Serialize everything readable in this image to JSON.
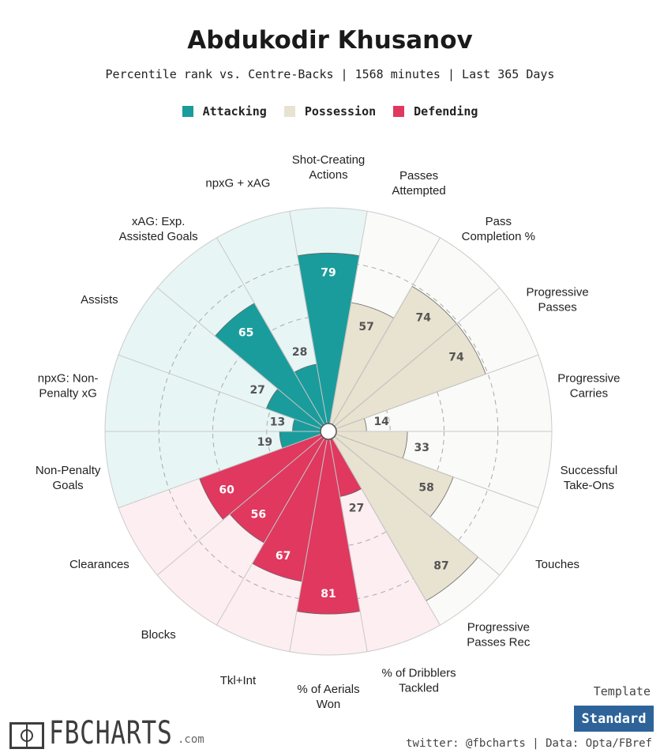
{
  "title": "Abdukodir Khusanov",
  "subtitle": "Percentile rank vs. Centre-Backs | 1568 minutes | Last 365 Days",
  "legend": [
    {
      "label": "Attacking",
      "color": "#1a9c9c"
    },
    {
      "label": "Possession",
      "color": "#e8e2d0"
    },
    {
      "label": "Defending",
      "color": "#e0385f"
    }
  ],
  "chart_data": {
    "type": "polar-bar",
    "title": "Abdukodir Khusanov",
    "rlim": [
      0,
      100
    ],
    "grid_rings": [
      25,
      50,
      75
    ],
    "categories": [
      {
        "label": "Shot-Creating Actions",
        "value": 79,
        "group": "Attacking"
      },
      {
        "label": "Passes Attempted",
        "value": 57,
        "group": "Possession"
      },
      {
        "label": "Pass Completion %",
        "value": 74,
        "group": "Possession"
      },
      {
        "label": "Progressive Passes",
        "value": 74,
        "group": "Possession"
      },
      {
        "label": "Progressive Carries",
        "value": 14,
        "group": "Possession"
      },
      {
        "label": "Successful Take-Ons",
        "value": 33,
        "group": "Possession"
      },
      {
        "label": "Touches",
        "value": 58,
        "group": "Possession"
      },
      {
        "label": "Progressive Passes Rec",
        "value": 87,
        "group": "Possession"
      },
      {
        "label": "% of Dribblers Tackled",
        "value": 27,
        "group": "Defending"
      },
      {
        "label": "% of Aerials Won",
        "value": 81,
        "group": "Defending"
      },
      {
        "label": "Tkl+Int",
        "value": 67,
        "group": "Defending"
      },
      {
        "label": "Blocks",
        "value": 56,
        "group": "Defending"
      },
      {
        "label": "Clearances",
        "value": 60,
        "group": "Defending"
      },
      {
        "label": "Non-Penalty Goals",
        "value": 19,
        "group": "Attacking"
      },
      {
        "label": "npxG: Non-Penalty xG",
        "value": 13,
        "group": "Attacking"
      },
      {
        "label": "Assists",
        "value": 27,
        "group": "Attacking"
      },
      {
        "label": "xAG: Exp. Assisted Goals",
        "value": 65,
        "group": "Attacking"
      },
      {
        "label": "npxG + xAG",
        "value": 28,
        "group": "Attacking"
      }
    ],
    "outer_labels": [
      [
        "Shot-Creating",
        "Actions"
      ],
      [
        "Passes",
        "Attempted"
      ],
      [
        "Pass",
        "Completion %"
      ],
      [
        "Progressive",
        "Passes"
      ],
      [
        "Progressive",
        "Carries"
      ],
      [
        "Successful",
        "Take-Ons"
      ],
      [
        "Touches"
      ],
      [
        "Progressive",
        "Passes Rec"
      ],
      [
        "% of Dribblers",
        "Tackled"
      ],
      [
        "% of Aerials",
        "Won"
      ],
      [
        "Tkl+Int"
      ],
      [
        "Blocks"
      ],
      [
        "Clearances"
      ],
      [
        "Non-Penalty",
        "Goals"
      ],
      [
        "npxG: Non-",
        "Penalty xG"
      ],
      [
        "Assists"
      ],
      [
        "xAG: Exp.",
        "Assisted Goals"
      ],
      [
        "npxG + xAG"
      ]
    ],
    "group_colors": {
      "Attacking": {
        "bar": "#1a9c9c",
        "bg": "#e8f5f5",
        "text": "#ffffff"
      },
      "Possession": {
        "bar": "#e8e2d0",
        "bg": "#fafaf8",
        "text": "#555555"
      },
      "Defending": {
        "bar": "#e0385f",
        "bg": "#fdeef1",
        "text": "#ffffff"
      }
    }
  },
  "template": {
    "label": "Template",
    "button": "Standard",
    "button_color": "#2e6399"
  },
  "credit": "twitter: @fbcharts | Data: Opta/FBref",
  "logo": {
    "text": "FBCHARTS",
    "suffix": ".com"
  }
}
